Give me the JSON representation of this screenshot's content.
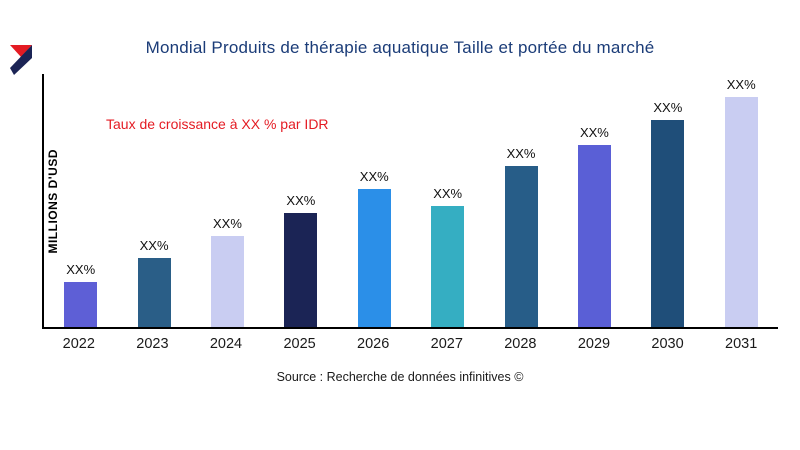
{
  "brand": {
    "red": "#e41b23",
    "navy": "#1b2455"
  },
  "chart_data": {
    "type": "bar",
    "title": "Mondial Produits de thérapie aquatique Taille et portée du marché",
    "ylabel": "MILLIONS D'USD",
    "xlabel": "",
    "annotation": "Taux de croissance à XX % par IDR",
    "source": "Source : Recherche de données infinitives ©",
    "categories": [
      "2022",
      "2023",
      "2024",
      "2025",
      "2026",
      "2027",
      "2028",
      "2029",
      "2030",
      "2031"
    ],
    "values_relative": [
      45,
      69,
      91,
      114,
      138,
      121,
      161,
      182,
      207,
      230
    ],
    "bar_labels": [
      "XX%",
      "XX%",
      "XX%",
      "XX%",
      "XX%",
      "XX%",
      "XX%",
      "XX%",
      "XX%",
      "XX%"
    ],
    "bar_colors": [
      "#5e5fd6",
      "#2a5e87",
      "#c9cdf2",
      "#1b2455",
      "#2b8fe8",
      "#35aec2",
      "#275d88",
      "#5a5fd6",
      "#1f4e79",
      "#c9cdf2"
    ],
    "ylim_relative": [
      0,
      255
    ],
    "grid": "off",
    "legend": "none",
    "title_color": "#1b3c78",
    "annotation_color": "#e41b23",
    "axis_color": "#000000"
  }
}
